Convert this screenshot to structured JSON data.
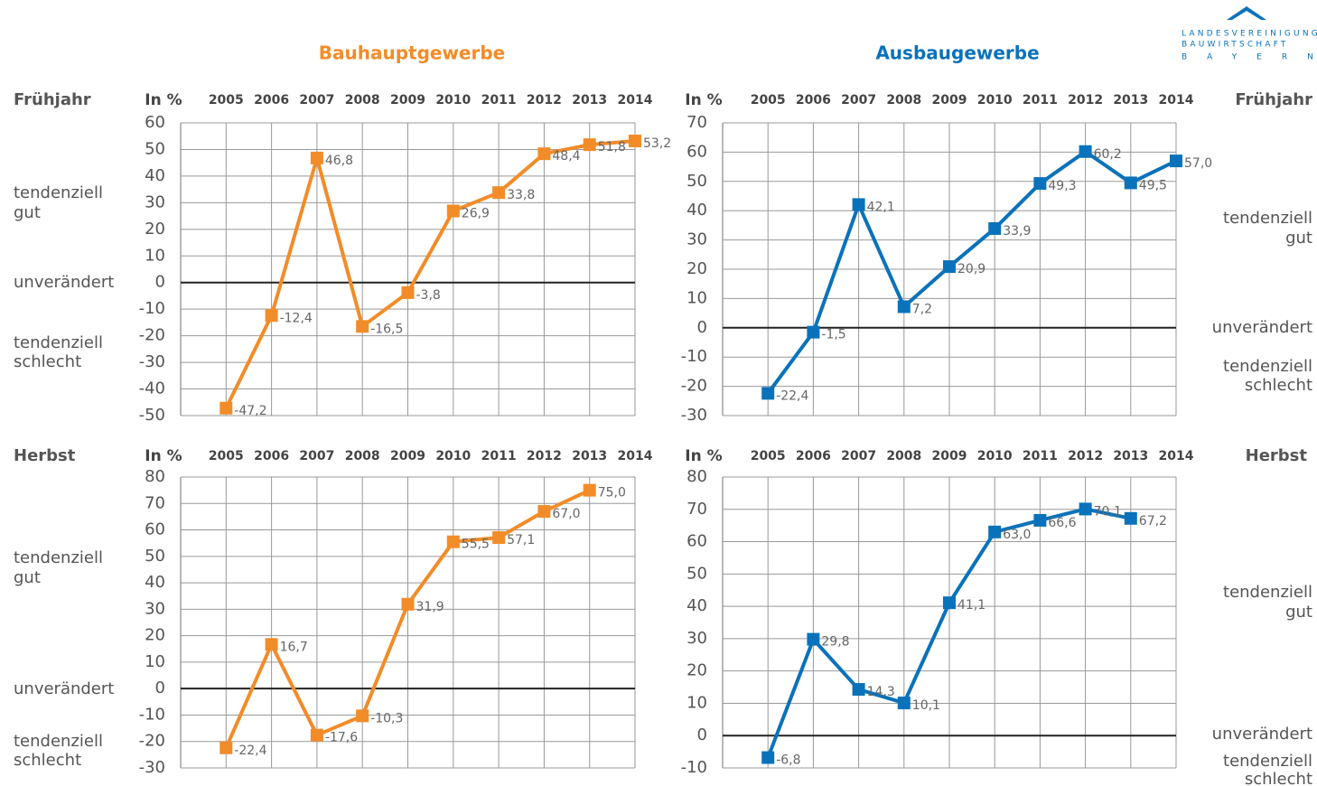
{
  "logo": {
    "lines": [
      "LANDESVEREINIGUNG",
      "BAUWIRTSCHAFT",
      "BAYERN"
    ]
  },
  "chart_data": [
    {
      "type": "line",
      "title": "Bauhauptgewerbe",
      "subtitle": "Frühjahr",
      "y_label": "In %",
      "categories": [
        "2005",
        "2006",
        "2007",
        "2008",
        "2009",
        "2010",
        "2011",
        "2012",
        "2013",
        "2014"
      ],
      "values": [
        -47.2,
        -12.4,
        46.8,
        -16.5,
        -3.8,
        26.9,
        33.8,
        48.4,
        51.8,
        53.2
      ],
      "value_labels": [
        "-47,2",
        "-12,4",
        "46,8",
        "-16,5",
        "-3,8",
        "26,9",
        "33,8",
        "48,4",
        "51,8",
        "53,2"
      ],
      "color": "#f28c28",
      "ylim": [
        -50,
        60
      ],
      "yticks": [
        -50,
        -40,
        -30,
        -20,
        -10,
        0,
        10,
        20,
        30,
        40,
        50,
        60
      ],
      "grid": true,
      "annotations": [
        [
          "tendenziell",
          "gut"
        ],
        [
          "unverändert"
        ],
        [
          "tendenziell",
          "schlecht"
        ]
      ]
    },
    {
      "type": "line",
      "title": "Ausbaugewerbe",
      "subtitle": "Frühjahr",
      "y_label": "In %",
      "categories": [
        "2005",
        "2006",
        "2007",
        "2008",
        "2009",
        "2010",
        "2011",
        "2012",
        "2013",
        "2014"
      ],
      "values": [
        -22.4,
        -1.5,
        42.1,
        7.2,
        20.9,
        33.9,
        49.3,
        60.2,
        49.5,
        57.0
      ],
      "value_labels": [
        "-22,4",
        "-1,5",
        "42,1",
        "7,2",
        "20,9",
        "33,9",
        "49,3",
        "60,2",
        "49,5",
        "57,0"
      ],
      "color": "#0a72ba",
      "ylim": [
        -30,
        70
      ],
      "yticks": [
        -30,
        -20,
        -10,
        0,
        10,
        20,
        30,
        40,
        50,
        60,
        70
      ],
      "grid": true,
      "annotations": [
        [
          "tendenziell",
          "gut"
        ],
        [
          "unverändert"
        ],
        [
          "tendenziell",
          "schlecht"
        ]
      ]
    },
    {
      "type": "line",
      "subtitle": "Herbst",
      "y_label": "In %",
      "categories": [
        "2005",
        "2006",
        "2007",
        "2008",
        "2009",
        "2010",
        "2011",
        "2012",
        "2013",
        "2014"
      ],
      "values": [
        -22.4,
        16.7,
        -17.6,
        -10.3,
        31.9,
        55.5,
        57.1,
        67.0,
        75.0,
        null
      ],
      "value_labels": [
        "-22,4",
        "16,7",
        "-17,6",
        "-10,3",
        "31,9",
        "55,5",
        "57,1",
        "67,0",
        "75,0",
        null
      ],
      "color": "#f28c28",
      "ylim": [
        -30,
        80
      ],
      "yticks": [
        -30,
        -20,
        -10,
        0,
        10,
        20,
        30,
        40,
        50,
        60,
        70,
        80
      ],
      "grid": true,
      "annotations": [
        [
          "tendenziell",
          "gut"
        ],
        [
          "unverändert"
        ],
        [
          "tendenziell",
          "schlecht"
        ]
      ]
    },
    {
      "type": "line",
      "subtitle": "Herbst",
      "y_label": "In %",
      "categories": [
        "2005",
        "2006",
        "2007",
        "2008",
        "2009",
        "2010",
        "2011",
        "2012",
        "2013",
        "2014"
      ],
      "values": [
        -6.8,
        29.8,
        14.3,
        10.1,
        41.1,
        63.0,
        66.6,
        70.1,
        67.2,
        null
      ],
      "value_labels": [
        "-6,8",
        "29,8",
        "14,3",
        "10,1",
        "41,1",
        "63,0",
        "66,6",
        "70,1",
        "67,2",
        null
      ],
      "color": "#0a72ba",
      "ylim": [
        -10,
        80
      ],
      "yticks": [
        -10,
        0,
        10,
        20,
        30,
        40,
        50,
        60,
        70,
        80
      ],
      "grid": true,
      "annotations": [
        [
          "tendenziell",
          "gut"
        ],
        [
          "unverändert"
        ],
        [
          "tendenziell",
          "schlecht"
        ]
      ]
    }
  ]
}
